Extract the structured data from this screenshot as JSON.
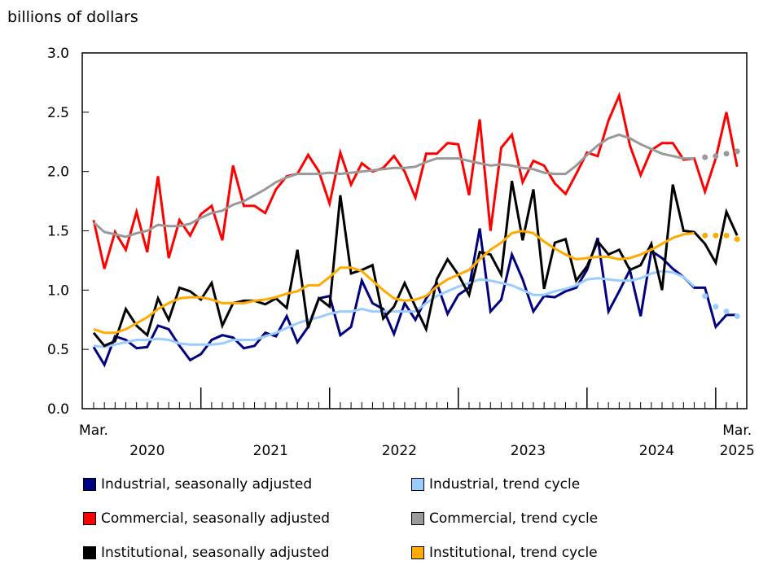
{
  "chart_data": {
    "type": "line",
    "ylabel": "billions of dollars",
    "ylim": [
      0,
      3.0
    ],
    "yticks": [
      "0.0",
      "0.5",
      "1.0",
      "1.5",
      "2.0",
      "2.5",
      "3.0"
    ],
    "x_start": "2020-03",
    "x_end": "2025-03",
    "x_tick_labels": {
      "start_month": "Mar.",
      "end_month": "Mar.",
      "years": [
        "2020",
        "2021",
        "2022",
        "2023",
        "2024",
        "2025"
      ]
    },
    "grid": false,
    "legend_placement": "bottom",
    "series": [
      {
        "name": "Industrial, seasonally adjusted",
        "color": "#000080",
        "style": "solid",
        "values": [
          0.52,
          0.37,
          0.61,
          0.58,
          0.51,
          0.52,
          0.7,
          0.67,
          0.53,
          0.41,
          0.46,
          0.58,
          0.62,
          0.6,
          0.51,
          0.53,
          0.64,
          0.61,
          0.78,
          0.56,
          0.69,
          0.93,
          0.95,
          0.62,
          0.69,
          1.08,
          0.89,
          0.84,
          0.63,
          0.89,
          0.75,
          0.93,
          1.06,
          0.8,
          0.96,
          1.02,
          1.52,
          0.82,
          0.92,
          1.3,
          1.09,
          0.82,
          0.95,
          0.94,
          0.99,
          1.02,
          1.17,
          1.44,
          0.82,
          0.99,
          1.17,
          0.78,
          1.33,
          1.27,
          1.18,
          1.11,
          1.02,
          1.02,
          0.69,
          0.79,
          0.79
        ]
      },
      {
        "name": "Industrial, trend cycle",
        "color": "#99ccff",
        "style": "solid",
        "projected_from_index": 57,
        "values": [
          0.53,
          0.52,
          0.54,
          0.56,
          0.58,
          0.58,
          0.59,
          0.58,
          0.55,
          0.54,
          0.54,
          0.54,
          0.55,
          0.58,
          0.58,
          0.58,
          0.61,
          0.64,
          0.68,
          0.72,
          0.75,
          0.77,
          0.8,
          0.82,
          0.82,
          0.84,
          0.82,
          0.82,
          0.82,
          0.82,
          0.82,
          0.89,
          0.95,
          0.99,
          1.03,
          1.06,
          1.09,
          1.08,
          1.06,
          1.04,
          1.0,
          0.96,
          0.96,
          0.99,
          1.01,
          1.04,
          1.09,
          1.1,
          1.09,
          1.08,
          1.08,
          1.1,
          1.14,
          1.16,
          1.15,
          1.11,
          1.03,
          0.95,
          0.86,
          0.82,
          0.78
        ]
      },
      {
        "name": "Commercial, seasonally adjusted",
        "color": "#ff0000",
        "style": "solid",
        "values": [
          1.59,
          1.18,
          1.49,
          1.34,
          1.66,
          1.32,
          1.96,
          1.27,
          1.59,
          1.46,
          1.64,
          1.71,
          1.42,
          2.05,
          1.71,
          1.71,
          1.65,
          1.85,
          1.96,
          1.98,
          2.14,
          2.0,
          1.73,
          2.16,
          1.89,
          2.07,
          2.0,
          2.03,
          2.13,
          2.0,
          1.78,
          2.15,
          2.15,
          2.24,
          2.23,
          1.8,
          2.44,
          1.5,
          2.2,
          2.31,
          1.91,
          2.09,
          2.05,
          1.9,
          1.81,
          1.98,
          2.16,
          2.13,
          2.43,
          2.64,
          2.22,
          1.97,
          2.18,
          2.24,
          2.24,
          2.1,
          2.11,
          1.83,
          2.11,
          2.5,
          2.04
        ]
      },
      {
        "name": "Commercial, trend cycle",
        "color": "#999999",
        "style": "solid",
        "projected_from_index": 57,
        "values": [
          1.57,
          1.49,
          1.47,
          1.45,
          1.48,
          1.5,
          1.55,
          1.54,
          1.54,
          1.56,
          1.61,
          1.65,
          1.67,
          1.72,
          1.75,
          1.8,
          1.85,
          1.91,
          1.95,
          1.98,
          1.98,
          1.98,
          1.99,
          1.98,
          1.99,
          2.0,
          2.01,
          2.02,
          2.03,
          2.03,
          2.04,
          2.08,
          2.11,
          2.11,
          2.11,
          2.09,
          2.07,
          2.05,
          2.06,
          2.05,
          2.03,
          2.02,
          1.99,
          1.98,
          1.98,
          2.05,
          2.14,
          2.22,
          2.28,
          2.31,
          2.28,
          2.23,
          2.19,
          2.15,
          2.13,
          2.11,
          2.11,
          2.12,
          2.13,
          2.15,
          2.17
        ]
      },
      {
        "name": "Institutional, seasonally adjusted",
        "color": "#000000",
        "style": "solid",
        "values": [
          0.64,
          0.53,
          0.57,
          0.84,
          0.7,
          0.62,
          0.93,
          0.75,
          1.02,
          0.99,
          0.92,
          1.06,
          0.7,
          0.89,
          0.91,
          0.91,
          0.88,
          0.93,
          0.85,
          1.34,
          0.68,
          0.93,
          0.86,
          1.8,
          1.14,
          1.17,
          1.21,
          0.76,
          0.86,
          1.06,
          0.86,
          0.67,
          1.09,
          1.26,
          1.13,
          0.96,
          1.32,
          1.3,
          1.13,
          1.92,
          1.42,
          1.85,
          1.01,
          1.4,
          1.43,
          1.08,
          1.2,
          1.41,
          1.3,
          1.34,
          1.17,
          1.21,
          1.39,
          1.0,
          1.89,
          1.5,
          1.49,
          1.39,
          1.23,
          1.66,
          1.46
        ]
      },
      {
        "name": "Institutional, trend cycle",
        "color": "#ffaa00",
        "style": "solid",
        "projected_from_index": 57,
        "values": [
          0.67,
          0.64,
          0.64,
          0.67,
          0.72,
          0.77,
          0.84,
          0.89,
          0.93,
          0.94,
          0.94,
          0.92,
          0.89,
          0.89,
          0.89,
          0.91,
          0.92,
          0.94,
          0.97,
          0.99,
          1.04,
          1.04,
          1.11,
          1.19,
          1.19,
          1.16,
          1.08,
          1.0,
          0.93,
          0.91,
          0.92,
          0.95,
          1.03,
          1.09,
          1.13,
          1.17,
          1.26,
          1.34,
          1.4,
          1.48,
          1.5,
          1.48,
          1.41,
          1.35,
          1.3,
          1.26,
          1.27,
          1.28,
          1.28,
          1.26,
          1.27,
          1.3,
          1.34,
          1.39,
          1.44,
          1.47,
          1.48,
          1.46,
          1.46,
          1.46,
          1.43
        ]
      }
    ]
  }
}
